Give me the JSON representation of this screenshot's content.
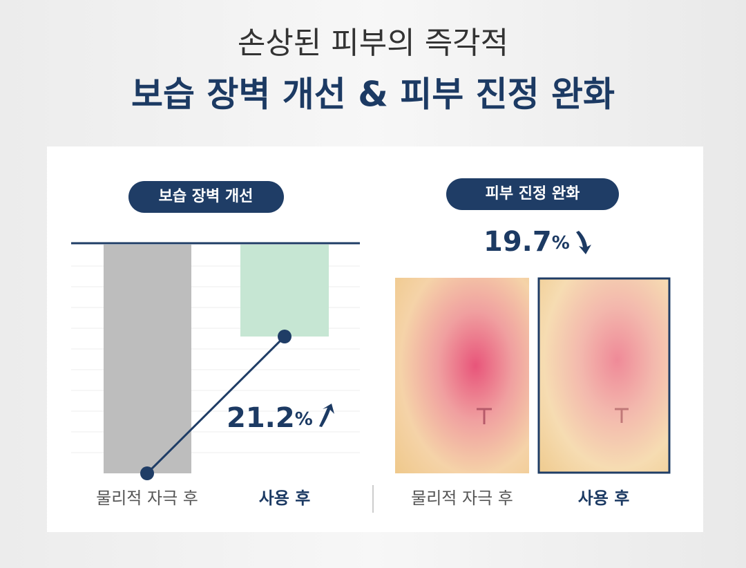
{
  "header": {
    "subtitle": "손상된 피부의 즉각적",
    "title": "보습 장벽 개선 & 피부 진정 완화"
  },
  "left_panel": {
    "badge": "보습 장벽 개선",
    "change": {
      "number": "21.2",
      "unit": "%"
    },
    "labels": [
      "물리적 자극 후",
      "사용 후"
    ]
  },
  "right_panel": {
    "badge": "피부 진정 완화",
    "change": {
      "number": "19.7",
      "unit": "%"
    },
    "labels": [
      "물리적 자극 후",
      "사용 후"
    ]
  }
}
